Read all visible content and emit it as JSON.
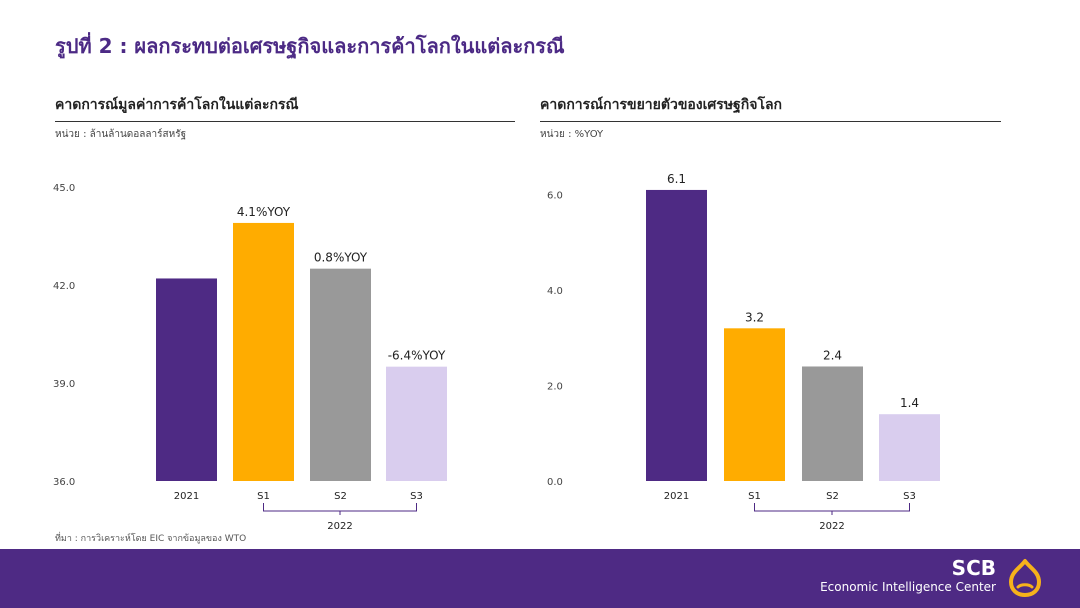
{
  "page": {
    "title": "รูปที่ 2 : ผลกระทบต่อเศรษฐกิจและการค้าโลกในแต่ละกรณี",
    "source_note": "ที่มา : การวิเคราะห์โดย EIC จากข้อมูลของ WTO"
  },
  "panels": [
    {
      "title": "คาดการณ์มูลค่าการค้าโลกในแต่ละกรณี",
      "unit": "หน่วย : ล้านล้านดอลลาร์สหรัฐ"
    },
    {
      "title": "คาดการณ์การขยายตัวของเศรษฐกิจโลก",
      "unit": "หน่วย : %YOY"
    }
  ],
  "footer": {
    "brand": "SCB",
    "tagline": "Economic Intelligence Center",
    "logo_icon": "scb-crest-icon"
  },
  "chart_data": [
    {
      "type": "bar",
      "title": "คาดการณ์มูลค่าการค้าโลกในแต่ละกรณี",
      "unit": "หน่วย : ล้านล้านดอลลาร์สหรัฐ",
      "categories": [
        "2021",
        "S1",
        "S2",
        "S3"
      ],
      "group_label": "2022",
      "grouped_categories": [
        "S1",
        "S2",
        "S3"
      ],
      "values": [
        42.2,
        43.9,
        42.5,
        39.5
      ],
      "data_labels": [
        "",
        "4.1%YOY",
        "0.8%YOY",
        "-6.4%YOY"
      ],
      "colors": [
        "#4e2a84",
        "#ffac00",
        "#999999",
        "#d9cdee"
      ],
      "yticks": [
        "36.0",
        "39.0",
        "42.0",
        "45.0"
      ],
      "ylim": [
        36,
        45
      ],
      "grid": false
    },
    {
      "type": "bar",
      "title": "คาดการณ์การขยายตัวของเศรษฐกิจโลก",
      "unit": "หน่วย : %YOY",
      "categories": [
        "2021",
        "S1",
        "S2",
        "S3"
      ],
      "group_label": "2022",
      "grouped_categories": [
        "S1",
        "S2",
        "S3"
      ],
      "values": [
        6.1,
        3.2,
        2.4,
        1.4
      ],
      "data_labels": [
        "6.1",
        "3.2",
        "2.4",
        "1.4"
      ],
      "colors": [
        "#4e2a84",
        "#ffac00",
        "#999999",
        "#d9cdee"
      ],
      "yticks": [
        "0.0",
        "2.0",
        "4.0",
        "6.0"
      ],
      "ylim": [
        0,
        7
      ],
      "grid": false
    }
  ]
}
